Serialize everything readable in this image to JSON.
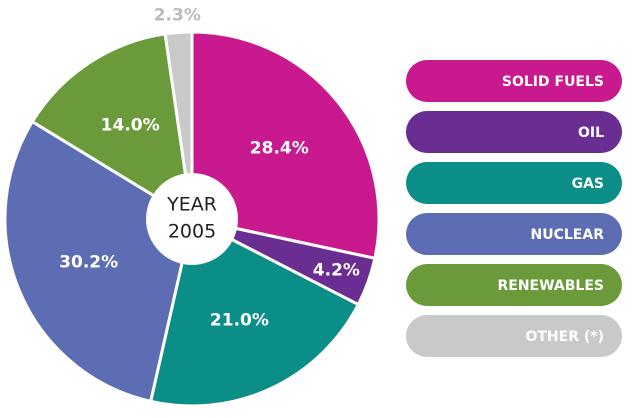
{
  "chart_data": {
    "type": "pie",
    "center_text": [
      "YEAR",
      "2005"
    ],
    "categories": [
      "SOLID FUELS",
      "OIL",
      "GAS",
      "NUCLEAR",
      "RENEWABLES",
      "OTHER (*)"
    ],
    "values": [
      28.4,
      4.2,
      21.0,
      30.2,
      14.0,
      2.3
    ],
    "value_labels": [
      "28.4%",
      "4.2%",
      "21.0%",
      "30.2%",
      "14.0%",
      "2.3%"
    ],
    "colors": [
      "#c8198f",
      "#6a2d91",
      "#0b8d88",
      "#5d6db4",
      "#6b9a3b",
      "#c9c9c9"
    ],
    "legend": "right"
  }
}
